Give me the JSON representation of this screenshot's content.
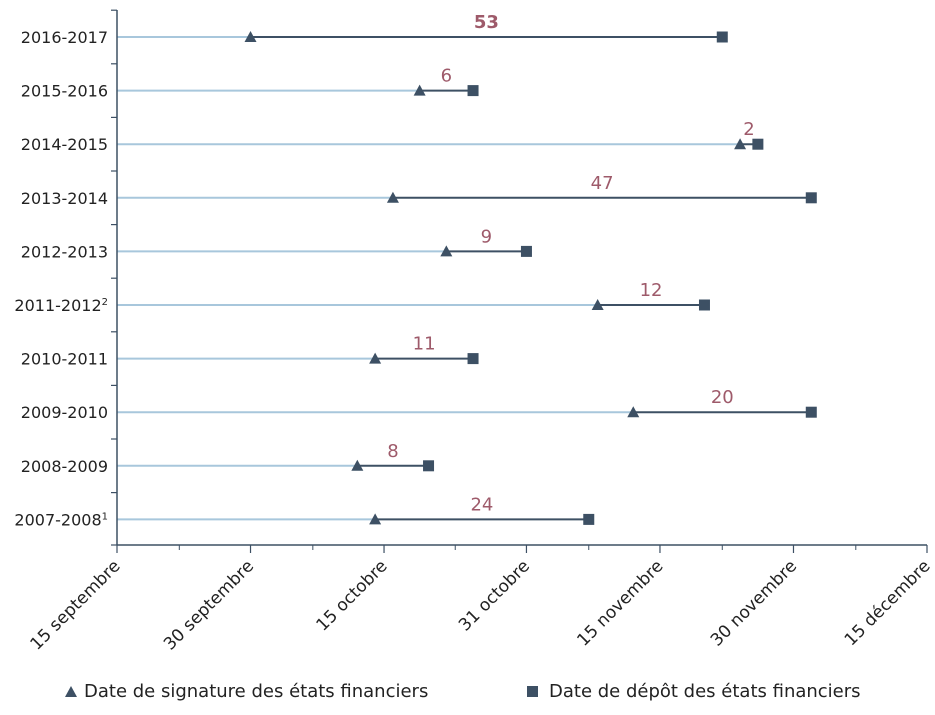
{
  "colors": {
    "leader": "#a8c7dc",
    "interval": "#3d5064",
    "marker": "#3d5064",
    "difference": "#9e5a6a",
    "axis": "#3d5064",
    "text": "#222222"
  },
  "chart_data": {
    "type": "dumbbell",
    "x_axis": {
      "min": "2016-09-15",
      "max": "2016-12-15",
      "tick_labels": [
        "15 septembre",
        "30 septembre",
        "15 octobre",
        "31 octobre",
        "15 novembre",
        "30 novembre",
        "15 décembre"
      ],
      "tick_dates": [
        "2016-09-15",
        "2016-09-30",
        "2016-10-15",
        "2016-10-31",
        "2016-11-15",
        "2016-11-30",
        "2016-12-15"
      ],
      "minor_tick_dates": [
        "2016-09-22",
        "2016-10-07",
        "2016-10-23",
        "2016-11-07",
        "2016-11-22",
        "2016-12-07"
      ]
    },
    "legend": {
      "position": "bottom",
      "signature": "Date de signature des états financiers",
      "depot": "Date de dépôt des états financiers"
    },
    "rows": [
      {
        "year": "2016-2017",
        "sup": "",
        "signature": "2016-09-30",
        "depot": "2016-11-22",
        "days": "53",
        "bold": true
      },
      {
        "year": "2015-2016",
        "sup": "",
        "signature": "2016-10-19",
        "depot": "2016-10-25",
        "days": "6",
        "bold": false
      },
      {
        "year": "2014-2015",
        "sup": "",
        "signature": "2016-11-24",
        "depot": "2016-11-26",
        "days": "2",
        "bold": false
      },
      {
        "year": "2013-2014",
        "sup": "",
        "signature": "2016-10-16",
        "depot": "2016-12-02",
        "days": "47",
        "bold": false
      },
      {
        "year": "2012-2013",
        "sup": "",
        "signature": "2016-10-22",
        "depot": "2016-10-31",
        "days": "9",
        "bold": false
      },
      {
        "year": "2011-2012",
        "sup": "2",
        "signature": "2016-11-08",
        "depot": "2016-11-20",
        "days": "12",
        "bold": false
      },
      {
        "year": "2010-2011",
        "sup": "",
        "signature": "2016-10-14",
        "depot": "2016-10-25",
        "days": "11",
        "bold": false
      },
      {
        "year": "2009-2010",
        "sup": "",
        "signature": "2016-11-12",
        "depot": "2016-12-02",
        "days": "20",
        "bold": false
      },
      {
        "year": "2008-2009",
        "sup": "",
        "signature": "2016-10-12",
        "depot": "2016-10-20",
        "days": "8",
        "bold": false
      },
      {
        "year": "2007-2008",
        "sup": "1",
        "signature": "2016-10-14",
        "depot": "2016-11-07",
        "days": "24",
        "bold": false
      }
    ]
  }
}
